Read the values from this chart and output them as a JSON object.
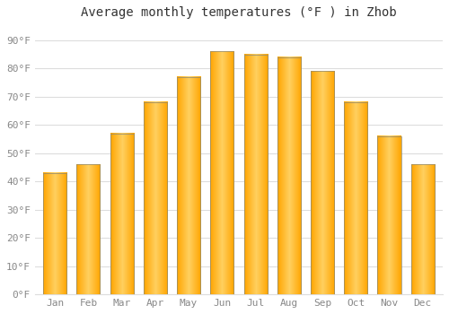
{
  "title": "Average monthly temperatures (°F ) in Zhob",
  "months": [
    "Jan",
    "Feb",
    "Mar",
    "Apr",
    "May",
    "Jun",
    "Jul",
    "Aug",
    "Sep",
    "Oct",
    "Nov",
    "Dec"
  ],
  "values": [
    43,
    46,
    57,
    68,
    77,
    86,
    85,
    84,
    79,
    68,
    56,
    46
  ],
  "bar_color_center": "#FFD060",
  "bar_color_edge": "#FFA500",
  "bar_border_color": "#888877",
  "background_color": "#FFFFFF",
  "grid_color": "#DDDDDD",
  "yticks": [
    0,
    10,
    20,
    30,
    40,
    50,
    60,
    70,
    80,
    90
  ],
  "ylim": [
    0,
    95
  ],
  "title_fontsize": 10,
  "tick_fontsize": 8,
  "tick_label_color": "#888888",
  "font_family": "monospace"
}
